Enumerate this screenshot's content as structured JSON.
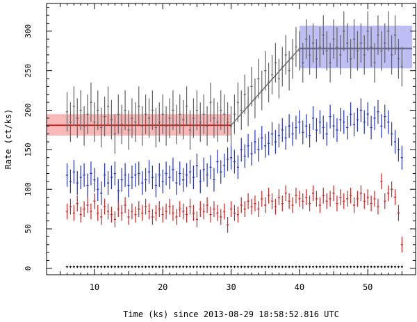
{
  "chart_data": {
    "type": "scatter",
    "title": "",
    "xlabel": "Time (ks) since 2013-08-29 18:58:52.816 UTC",
    "ylabel": "Rate (ct/ks)",
    "xlim": [
      3,
      57
    ],
    "ylim": [
      -8,
      335
    ],
    "x_ticks": [
      10,
      20,
      30,
      40,
      50
    ],
    "y_ticks": [
      0,
      50,
      100,
      150,
      200,
      250,
      300
    ],
    "x_tick_labels": [
      "10",
      "20",
      "30",
      "40",
      "50"
    ],
    "y_tick_labels": [
      "0",
      "50",
      "100",
      "150",
      "200",
      "250",
      "300"
    ],
    "grid": false,
    "legend": "none",
    "x": [
      6,
      6.5,
      7,
      7.5,
      8,
      8.5,
      9,
      9.5,
      10,
      10.5,
      11,
      11.5,
      12,
      12.5,
      13,
      13.5,
      14,
      14.5,
      15,
      15.5,
      16,
      16.5,
      17,
      17.5,
      18,
      18.5,
      19,
      19.5,
      20,
      20.5,
      21,
      21.5,
      22,
      22.5,
      23,
      23.5,
      24,
      24.5,
      25,
      25.5,
      26,
      26.5,
      27,
      27.5,
      28,
      28.5,
      29,
      29.5,
      30,
      30.5,
      31,
      31.5,
      32,
      32.5,
      33,
      33.5,
      34,
      34.5,
      35,
      35.5,
      36,
      36.5,
      37,
      37.5,
      38,
      38.5,
      39,
      39.5,
      40,
      40.5,
      41,
      41.5,
      42,
      42.5,
      43,
      43.5,
      44,
      44.5,
      45,
      45.5,
      46,
      46.5,
      47,
      47.5,
      48,
      48.5,
      49,
      49.5,
      50,
      50.5,
      51,
      51.5,
      52,
      52.5,
      53,
      53.5,
      54,
      54.5,
      55,
      55.5,
      56
    ],
    "series": [
      {
        "color": "#606060",
        "values": [
          198,
          185,
          205,
          190,
          200,
          180,
          195,
          210,
          185,
          200,
          178,
          192,
          205,
          188,
          170,
          195,
          182,
          200,
          175,
          190,
          185,
          205,
          180,
          195,
          190,
          200,
          178,
          185,
          195,
          180,
          190,
          200,
          182,
          195,
          188,
          205,
          175,
          190,
          200,
          185,
          195,
          180,
          210,
          190,
          185,
          200,
          195,
          185,
          180,
          195,
          210,
          200,
          220,
          205,
          230,
          215,
          240,
          225,
          250,
          235,
          245,
          260,
          240,
          255,
          270,
          250,
          265,
          280,
          275,
          260,
          290,
          270,
          285,
          265,
          280,
          295,
          275,
          260,
          290,
          280,
          270,
          300,
          285,
          265,
          290,
          275,
          285,
          270,
          300,
          280,
          260,
          295,
          275,
          285,
          300,
          270,
          295,
          265,
          255
        ],
        "errors": [
          25,
          25,
          25,
          25,
          25,
          25,
          25,
          25,
          25,
          25,
          25,
          25,
          25,
          25,
          25,
          25,
          25,
          25,
          25,
          25,
          25,
          25,
          25,
          25,
          25,
          25,
          25,
          25,
          25,
          25,
          25,
          25,
          25,
          25,
          25,
          25,
          25,
          25,
          25,
          25,
          25,
          25,
          25,
          25,
          25,
          25,
          25,
          25,
          25,
          25,
          25,
          25,
          25,
          25,
          25,
          25,
          25,
          25,
          25,
          25,
          25,
          25,
          25,
          25,
          25,
          25,
          25,
          25,
          25,
          25,
          25,
          25,
          25,
          25,
          25,
          25,
          25,
          25,
          25,
          25,
          25,
          25,
          25,
          25,
          25,
          25,
          25,
          25,
          25,
          25,
          25,
          25,
          25,
          25,
          25,
          25,
          25,
          25,
          25
        ]
      },
      {
        "color": "#1f2fd0",
        "values": [
          118,
          110,
          122,
          108,
          115,
          118,
          105,
          120,
          112,
          100,
          95,
          118,
          108,
          115,
          120,
          98,
          112,
          118,
          105,
          115,
          118,
          120,
          108,
          112,
          122,
          115,
          105,
          118,
          110,
          120,
          115,
          125,
          108,
          120,
          112,
          118,
          122,
          115,
          130,
          110,
          125,
          118,
          128,
          112,
          135,
          122,
          130,
          138,
          140,
          135,
          128,
          150,
          142,
          155,
          145,
          160,
          150,
          165,
          155,
          158,
          170,
          160,
          168,
          175,
          165,
          180,
          170,
          178,
          185,
          172,
          180,
          168,
          190,
          175,
          185,
          178,
          170,
          192,
          180,
          175,
          188,
          185,
          178,
          195,
          182,
          188,
          200,
          185,
          195,
          178,
          190,
          198,
          180,
          192,
          185,
          170,
          160,
          150,
          140
        ],
        "errors": [
          15,
          15,
          15,
          15,
          15,
          15,
          15,
          15,
          15,
          15,
          15,
          15,
          15,
          15,
          15,
          15,
          15,
          15,
          15,
          15,
          15,
          15,
          15,
          15,
          15,
          15,
          15,
          15,
          15,
          15,
          15,
          15,
          15,
          15,
          15,
          15,
          15,
          15,
          15,
          15,
          15,
          15,
          15,
          15,
          15,
          15,
          15,
          15,
          15,
          15,
          15,
          15,
          15,
          15,
          15,
          15,
          15,
          15,
          15,
          15,
          15,
          15,
          15,
          15,
          15,
          15,
          15,
          15,
          15,
          15,
          15,
          15,
          15,
          15,
          15,
          15,
          15,
          15,
          15,
          15,
          15,
          15,
          15,
          15,
          15,
          15,
          15,
          15,
          15,
          15,
          15,
          15,
          15,
          15,
          15,
          15,
          15,
          15,
          15
        ]
      },
      {
        "color": "#d02020",
        "values": [
          72,
          78,
          70,
          82,
          68,
          75,
          80,
          72,
          85,
          70,
          65,
          78,
          72,
          68,
          62,
          75,
          70,
          80,
          65,
          72,
          68,
          75,
          70,
          78,
          72,
          65,
          70,
          75,
          68,
          72,
          78,
          70,
          65,
          75,
          72,
          68,
          78,
          70,
          62,
          75,
          72,
          80,
          68,
          75,
          70,
          65,
          72,
          55,
          75,
          70,
          68,
          80,
          75,
          85,
          78,
          82,
          75,
          88,
          80,
          92,
          85,
          78,
          90,
          82,
          95,
          85,
          80,
          92,
          88,
          85,
          90,
          82,
          95,
          88,
          80,
          92,
          85,
          88,
          95,
          82,
          90,
          85,
          88,
          92,
          80,
          88,
          95,
          85,
          90,
          82,
          88,
          78,
          110,
          85,
          95,
          100,
          90,
          70,
          30
        ],
        "errors": [
          10,
          10,
          10,
          10,
          10,
          10,
          10,
          10,
          10,
          10,
          10,
          10,
          10,
          10,
          10,
          10,
          10,
          10,
          10,
          10,
          10,
          10,
          10,
          10,
          10,
          10,
          10,
          10,
          10,
          10,
          10,
          10,
          10,
          10,
          10,
          10,
          10,
          10,
          10,
          10,
          10,
          10,
          10,
          10,
          10,
          10,
          10,
          10,
          10,
          10,
          10,
          10,
          10,
          10,
          10,
          10,
          10,
          10,
          10,
          10,
          10,
          10,
          10,
          10,
          10,
          10,
          10,
          10,
          10,
          10,
          10,
          10,
          10,
          10,
          10,
          10,
          10,
          10,
          10,
          10,
          10,
          10,
          10,
          10,
          10,
          10,
          10,
          10,
          10,
          10,
          10,
          10,
          10,
          10,
          10,
          10,
          10,
          10,
          10
        ]
      },
      {
        "color": "#000000",
        "values": [
          2,
          2,
          2,
          2,
          2,
          2,
          2,
          2,
          2,
          2,
          2,
          2,
          2,
          2,
          2,
          2,
          2,
          2,
          2,
          2,
          2,
          2,
          2,
          2,
          2,
          2,
          2,
          2,
          2,
          2,
          2,
          2,
          2,
          2,
          2,
          2,
          2,
          2,
          2,
          2,
          2,
          2,
          2,
          2,
          2,
          2,
          2,
          2,
          2,
          2,
          2,
          2,
          2,
          2,
          2,
          2,
          2,
          2,
          2,
          2,
          2,
          2,
          2,
          2,
          2,
          2,
          2,
          2,
          2,
          2,
          2,
          2,
          2,
          2,
          2,
          2,
          2,
          2,
          2,
          2,
          2,
          2,
          2,
          2,
          2,
          2,
          2,
          2,
          2,
          2,
          2,
          2,
          2,
          2,
          2,
          2,
          2,
          2,
          2
        ],
        "errors": [
          1.5,
          1.5,
          1.5,
          1.5,
          1.5,
          1.5,
          1.5,
          1.5,
          1.5,
          1.5,
          1.5,
          1.5,
          1.5,
          1.5,
          1.5,
          1.5,
          1.5,
          1.5,
          1.5,
          1.5,
          1.5,
          1.5,
          1.5,
          1.5,
          1.5,
          1.5,
          1.5,
          1.5,
          1.5,
          1.5,
          1.5,
          1.5,
          1.5,
          1.5,
          1.5,
          1.5,
          1.5,
          1.5,
          1.5,
          1.5,
          1.5,
          1.5,
          1.5,
          1.5,
          1.5,
          1.5,
          1.5,
          1.5,
          1.5,
          1.5,
          1.5,
          1.5,
          1.5,
          1.5,
          1.5,
          1.5,
          1.5,
          1.5,
          1.5,
          1.5,
          1.5,
          1.5,
          1.5,
          1.5,
          1.5,
          1.5,
          1.5,
          1.5,
          1.5,
          1.5,
          1.5,
          1.5,
          1.5,
          1.5,
          1.5,
          1.5,
          1.5,
          1.5,
          1.5,
          1.5,
          1.5,
          1.5,
          1.5,
          1.5,
          1.5,
          1.5,
          1.5,
          1.5,
          1.5,
          1.5,
          1.5,
          1.5,
          1.5,
          1.5,
          1.5,
          1.5,
          1.5,
          1.5,
          1.5
        ]
      }
    ],
    "model_line": {
      "color": "#707070",
      "points": [
        [
          30,
          181
        ],
        [
          40,
          278
        ],
        [
          56.5,
          278
        ]
      ]
    },
    "bands": [
      {
        "color": "#f5a0a0",
        "line_color": "#d02020",
        "x": [
          3,
          30
        ],
        "level": 181,
        "low": 168,
        "high": 195
      },
      {
        "color": "#a8a8f0",
        "line_color": "#2030c0",
        "x": [
          40,
          56.5
        ],
        "level": 278,
        "low": 253,
        "high": 307
      }
    ]
  }
}
